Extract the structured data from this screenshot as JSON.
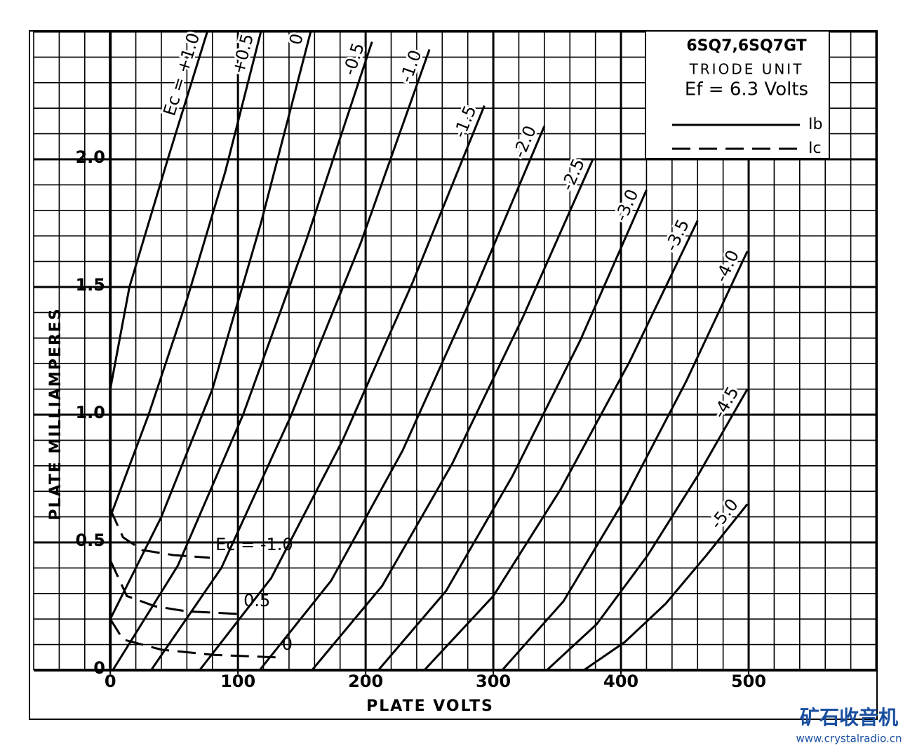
{
  "chart_data": {
    "type": "line",
    "x_label": "PLATE VOLTS",
    "y_label": "PLATE MILLIAMPERES",
    "xlim": [
      -60,
      600
    ],
    "ylim": [
      0,
      2.5
    ],
    "xticks": [
      0,
      100,
      200,
      300,
      400,
      500
    ],
    "yticks": [
      0,
      0.5,
      {
        "value": 1,
        "label": "1.0"
      },
      1.5,
      {
        "value": 2,
        "label": "2.0"
      }
    ],
    "grid": true,
    "minor_grid": {
      "x": 20,
      "y": 0.1
    },
    "major_grid": {
      "x": 100,
      "y": 0.5
    },
    "legend": {
      "title": "6SQ7,6SQ7GT",
      "subtitle": "TRIODE UNIT",
      "note": "Ef = 6.3 Volts",
      "items": [
        {
          "name": "Ib",
          "style": "solid"
        },
        {
          "name": "Ic",
          "style": "dashed"
        }
      ]
    },
    "series": [
      {
        "name": "Ec = +1.0",
        "color": "#000000",
        "style": "solid",
        "x": [
          0,
          15,
          45,
          76
        ],
        "values": [
          1.1,
          1.5,
          2.0,
          2.5
        ]
      },
      {
        "name": "+0.5",
        "color": "#000000",
        "style": "solid",
        "x": [
          0,
          30,
          60,
          90,
          118
        ],
        "values": [
          0.6,
          1.0,
          1.45,
          1.95,
          2.5
        ]
      },
      {
        "name": "0",
        "color": "#000000",
        "style": "solid",
        "x": [
          0,
          40,
          80,
          118,
          157
        ],
        "values": [
          0.2,
          0.6,
          1.1,
          1.75,
          2.5
        ]
      },
      {
        "name": "-0.5",
        "color": "#000000",
        "style": "solid",
        "x": [
          2,
          53,
          104,
          154,
          205
        ],
        "values": [
          0,
          0.41,
          1.0,
          1.69,
          2.46
        ]
      },
      {
        "name": "-1.0",
        "color": "#000000",
        "style": "solid",
        "x": [
          32,
          87,
          141,
          196,
          250
        ],
        "values": [
          0,
          0.4,
          0.99,
          1.67,
          2.43
        ]
      },
      {
        "name": "-1.5",
        "color": "#000000",
        "style": "solid",
        "x": [
          70,
          126,
          182,
          237,
          293
        ],
        "values": [
          0,
          0.36,
          0.9,
          1.52,
          2.21
        ]
      },
      {
        "name": "-2.0",
        "color": "#000000",
        "style": "solid",
        "x": [
          117,
          173,
          229,
          284,
          340
        ],
        "values": [
          0,
          0.35,
          0.86,
          1.47,
          2.13
        ]
      },
      {
        "name": "-2.5",
        "color": "#000000",
        "style": "solid",
        "x": [
          158,
          213,
          268,
          323,
          378
        ],
        "values": [
          0,
          0.33,
          0.81,
          1.38,
          2.0
        ]
      },
      {
        "name": "-3.0",
        "color": "#000000",
        "style": "solid",
        "x": [
          210,
          263,
          315,
          368,
          420
        ],
        "values": [
          0,
          0.31,
          0.76,
          1.29,
          1.88
        ]
      },
      {
        "name": "-3.5",
        "color": "#000000",
        "style": "solid",
        "x": [
          246,
          300,
          353,
          407,
          460
        ],
        "values": [
          0,
          0.29,
          0.71,
          1.21,
          1.76
        ]
      },
      {
        "name": "-4.0",
        "color": "#000000",
        "style": "solid",
        "x": [
          307,
          355,
          403,
          451,
          499
        ],
        "values": [
          0,
          0.27,
          0.67,
          1.13,
          1.64
        ]
      },
      {
        "name": "-4.5",
        "color": "#000000",
        "style": "solid",
        "x": [
          342,
          381,
          421,
          460,
          499
        ],
        "values": [
          0,
          0.18,
          0.45,
          0.76,
          1.1
        ]
      },
      {
        "name": "-5.0",
        "color": "#000000",
        "style": "solid",
        "x": [
          371,
          403,
          435,
          467,
          499
        ],
        "values": [
          0,
          0.11,
          0.26,
          0.45,
          0.65
        ]
      },
      {
        "name": "Ec = -1.0",
        "color": "#000000",
        "style": "dashed",
        "x": [
          0,
          10,
          25,
          50,
          78
        ],
        "values": [
          0.63,
          0.52,
          0.47,
          0.45,
          0.44
        ]
      },
      {
        "name": "0.5",
        "color": "#000000",
        "style": "dashed",
        "x": [
          0,
          13,
          35,
          60,
          100
        ],
        "values": [
          0.43,
          0.29,
          0.25,
          0.23,
          0.22
        ]
      },
      {
        "name": "0",
        "color": "#000000",
        "style": "dashed",
        "x": [
          0,
          10,
          40,
          80,
          130
        ],
        "values": [
          0.2,
          0.12,
          0.08,
          0.06,
          0.05
        ]
      }
    ],
    "watermark": {
      "title": "矿石收音机",
      "url": "www.crystalradio.cn"
    }
  }
}
